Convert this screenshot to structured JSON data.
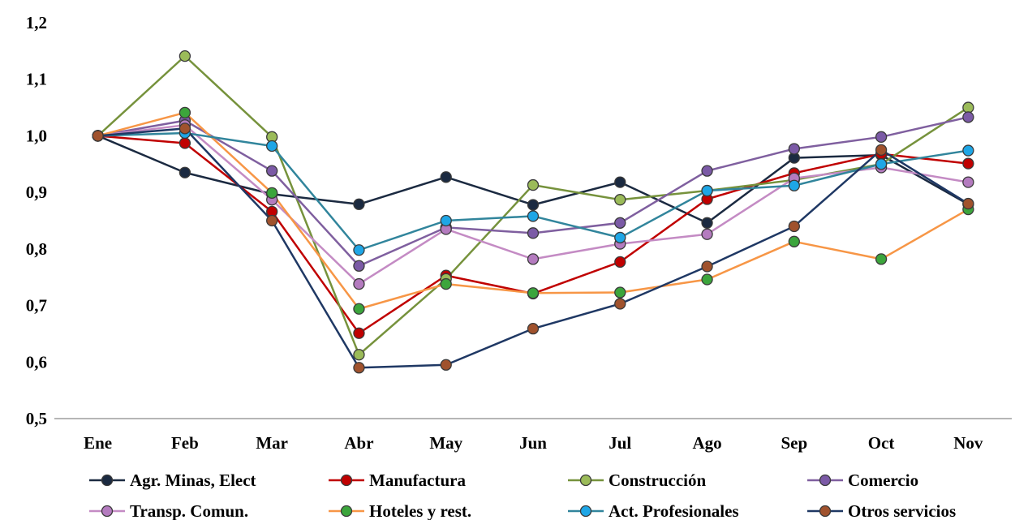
{
  "chart_data": {
    "type": "line",
    "title": "",
    "xlabel": "",
    "ylabel": "",
    "ylim": [
      0.5,
      1.2
    ],
    "yticks": [
      "0,5",
      "0,6",
      "0,7",
      "0,8",
      "0,9",
      "1,0",
      "1,1",
      "1,2"
    ],
    "categories": [
      "Ene",
      "Feb",
      "Mar",
      "Abr",
      "May",
      "Jun",
      "Jul",
      "Ago",
      "Sep",
      "Oct",
      "Nov"
    ],
    "grid": false,
    "legend_position": "bottom",
    "series": [
      {
        "name": "Agr. Minas, Elect",
        "line_color": "#1b2a41",
        "marker_color": "#1b2a41",
        "values": [
          1.0,
          0.935,
          0.897,
          0.879,
          0.927,
          0.878,
          0.918,
          0.846,
          0.961,
          0.966,
          0.879
        ]
      },
      {
        "name": "Manufactura",
        "line_color": "#c00000",
        "marker_color": "#c00000",
        "values": [
          1.0,
          0.987,
          0.866,
          0.651,
          0.753,
          0.721,
          0.777,
          0.888,
          0.934,
          0.968,
          0.951
        ]
      },
      {
        "name": "Construcción",
        "line_color": "#76923c",
        "marker_color": "#9bbb59",
        "values": [
          1.0,
          1.141,
          0.998,
          0.613,
          0.747,
          0.913,
          0.887,
          0.903,
          0.922,
          0.95,
          1.05
        ]
      },
      {
        "name": "Comercio",
        "line_color": "#7f5f9f",
        "marker_color": "#7b5aa6",
        "values": [
          1.0,
          1.027,
          0.938,
          0.77,
          0.838,
          0.828,
          0.846,
          0.938,
          0.977,
          0.998,
          1.033
        ]
      },
      {
        "name": "Transp. Comun.",
        "line_color": "#c48bc4",
        "marker_color": "#b47bbf",
        "values": [
          1.0,
          1.019,
          0.887,
          0.738,
          0.835,
          0.782,
          0.809,
          0.826,
          0.925,
          0.944,
          0.918
        ]
      },
      {
        "name": "Hoteles y rest.",
        "line_color": "#f79646",
        "marker_color": "#3ca53c",
        "values": [
          1.0,
          1.041,
          0.899,
          0.694,
          0.738,
          0.722,
          0.723,
          0.746,
          0.813,
          0.782,
          0.87
        ]
      },
      {
        "name": "Act. Profesionales",
        "line_color": "#31859c",
        "marker_color": "#1ea6e6",
        "values": [
          1.0,
          1.005,
          0.982,
          0.798,
          0.85,
          0.858,
          0.82,
          0.903,
          0.912,
          0.95,
          0.974
        ]
      },
      {
        "name": "Otros servicios",
        "line_color": "#1f3864",
        "marker_color": "#a0522d",
        "values": [
          1.0,
          1.013,
          0.85,
          0.59,
          0.595,
          0.659,
          0.703,
          0.769,
          0.84,
          0.975,
          0.88
        ]
      }
    ]
  }
}
